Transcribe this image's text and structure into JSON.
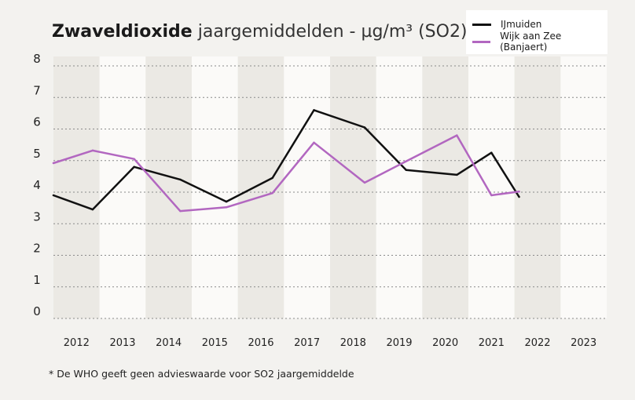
{
  "chart_data": {
    "type": "line",
    "title_bold": "Zwaveldioxide",
    "title_rest": "jaargemiddelden - µg/m³ (SO2)*",
    "categories": [
      "2012",
      "2013",
      "2014",
      "2015",
      "2016",
      "2017",
      "2018",
      "2019",
      "2020",
      "2021",
      "2022",
      "2023"
    ],
    "ylim": [
      0,
      8
    ],
    "yticks": [
      "0",
      "1",
      "2",
      "3",
      "4",
      "5",
      "6",
      "7",
      "8"
    ],
    "series": [
      {
        "name": "IJmuiden",
        "color": "#111111",
        "x": [
          2012.0,
          2012.85,
          2013.75,
          2014.75,
          2015.75,
          2016.75,
          2017.65,
          2018.75,
          2019.65,
          2020.75,
          2021.5,
          2022.1
        ],
        "values": [
          3.9,
          3.45,
          4.8,
          4.4,
          3.7,
          4.45,
          6.6,
          6.05,
          4.7,
          4.55,
          5.25,
          3.85
        ]
      },
      {
        "name": "Wijk aan Zee (Banjaert)",
        "color": "#b267c0",
        "x": [
          2012.0,
          2012.85,
          2013.75,
          2014.75,
          2015.75,
          2016.75,
          2017.65,
          2018.75,
          2019.65,
          2020.75,
          2021.5,
          2022.1
        ],
        "values": [
          4.92,
          5.32,
          5.05,
          3.4,
          3.52,
          3.97,
          5.57,
          4.3,
          4.98,
          5.8,
          3.9,
          4.02
        ]
      }
    ],
    "grid": true,
    "legend_position": "top-right",
    "footnote": "* De WHO geeft geen advieswaarde voor SO2 jaargemiddelde"
  }
}
